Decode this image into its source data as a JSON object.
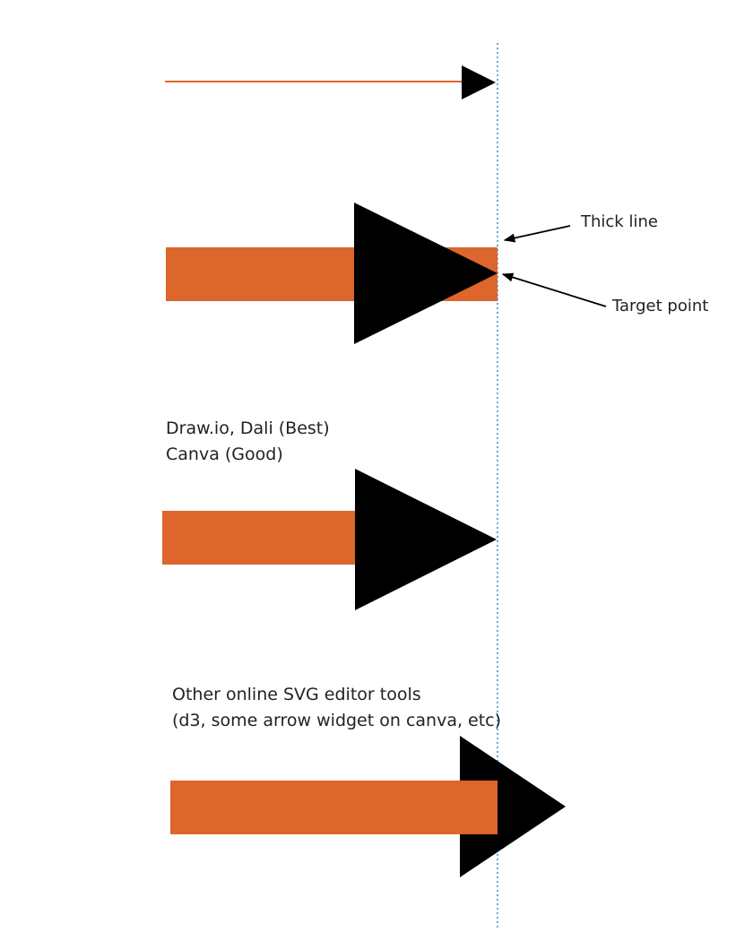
{
  "colors": {
    "shaft": "#dc662b",
    "head": "#000000",
    "guide": "#2f8fd0",
    "text": "#222222",
    "background": "#ffffff"
  },
  "annotations": {
    "thick_line": "Thick line",
    "target_point": "Target point"
  },
  "groups": [
    {
      "id": "thin-arrow",
      "caption_lines": []
    },
    {
      "id": "thick-arrow-naive",
      "caption_lines": []
    },
    {
      "id": "drawio-dali-canva",
      "caption_lines": [
        "Draw.io, Dali (Best)",
        "Canva (Good)"
      ]
    },
    {
      "id": "other-svg-tools",
      "caption_lines": [
        "Other online SVG editor tools",
        "(d3, some arrow widget on canva, etc)"
      ]
    }
  ]
}
